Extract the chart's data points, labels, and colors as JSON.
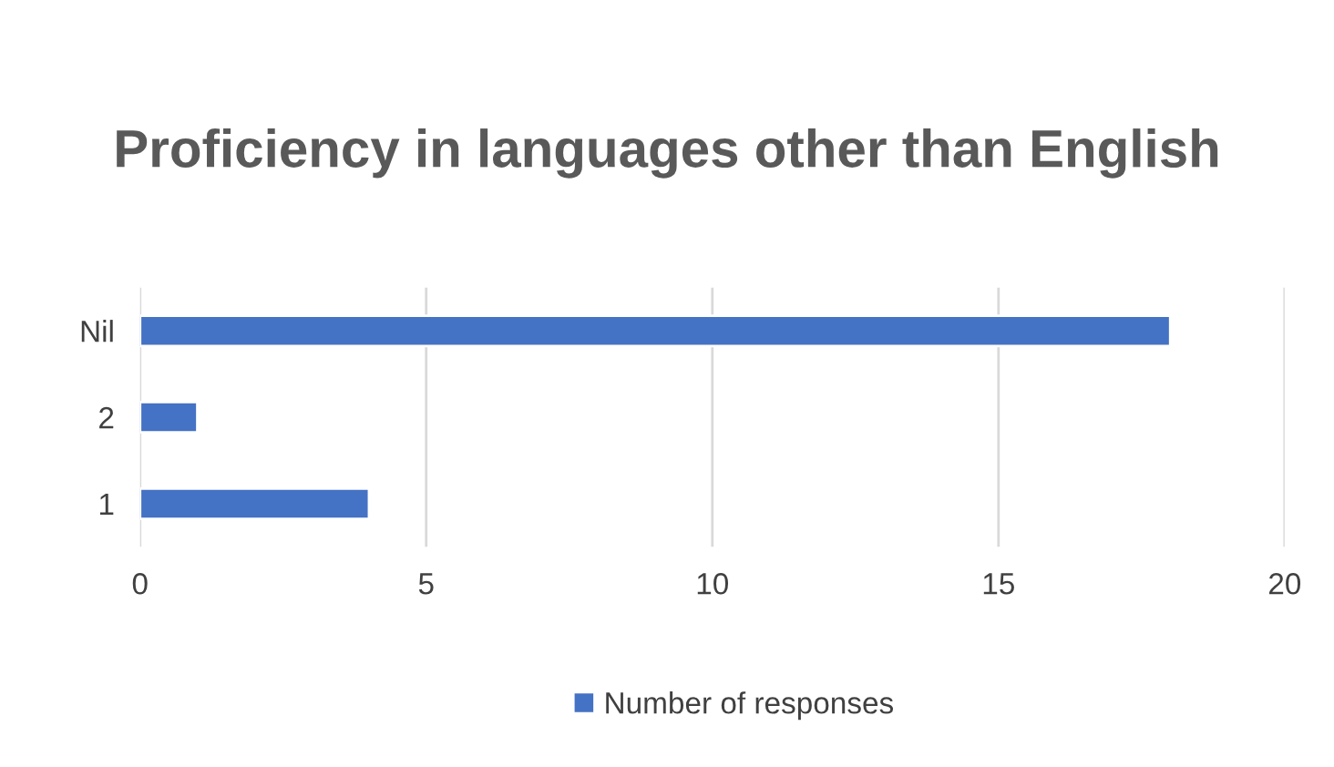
{
  "chart_data": {
    "type": "bar",
    "orientation": "horizontal",
    "title": "Proficiency in languages other than English",
    "categories": [
      "Nil",
      "2",
      "1"
    ],
    "series": [
      {
        "name": "Number of responses",
        "color": "#4472c4",
        "values": [
          18,
          1,
          4
        ]
      }
    ],
    "xlim": [
      0,
      20
    ],
    "xticks": [
      0,
      5,
      10,
      15,
      20
    ],
    "grid": "x",
    "legend": "bottom"
  }
}
